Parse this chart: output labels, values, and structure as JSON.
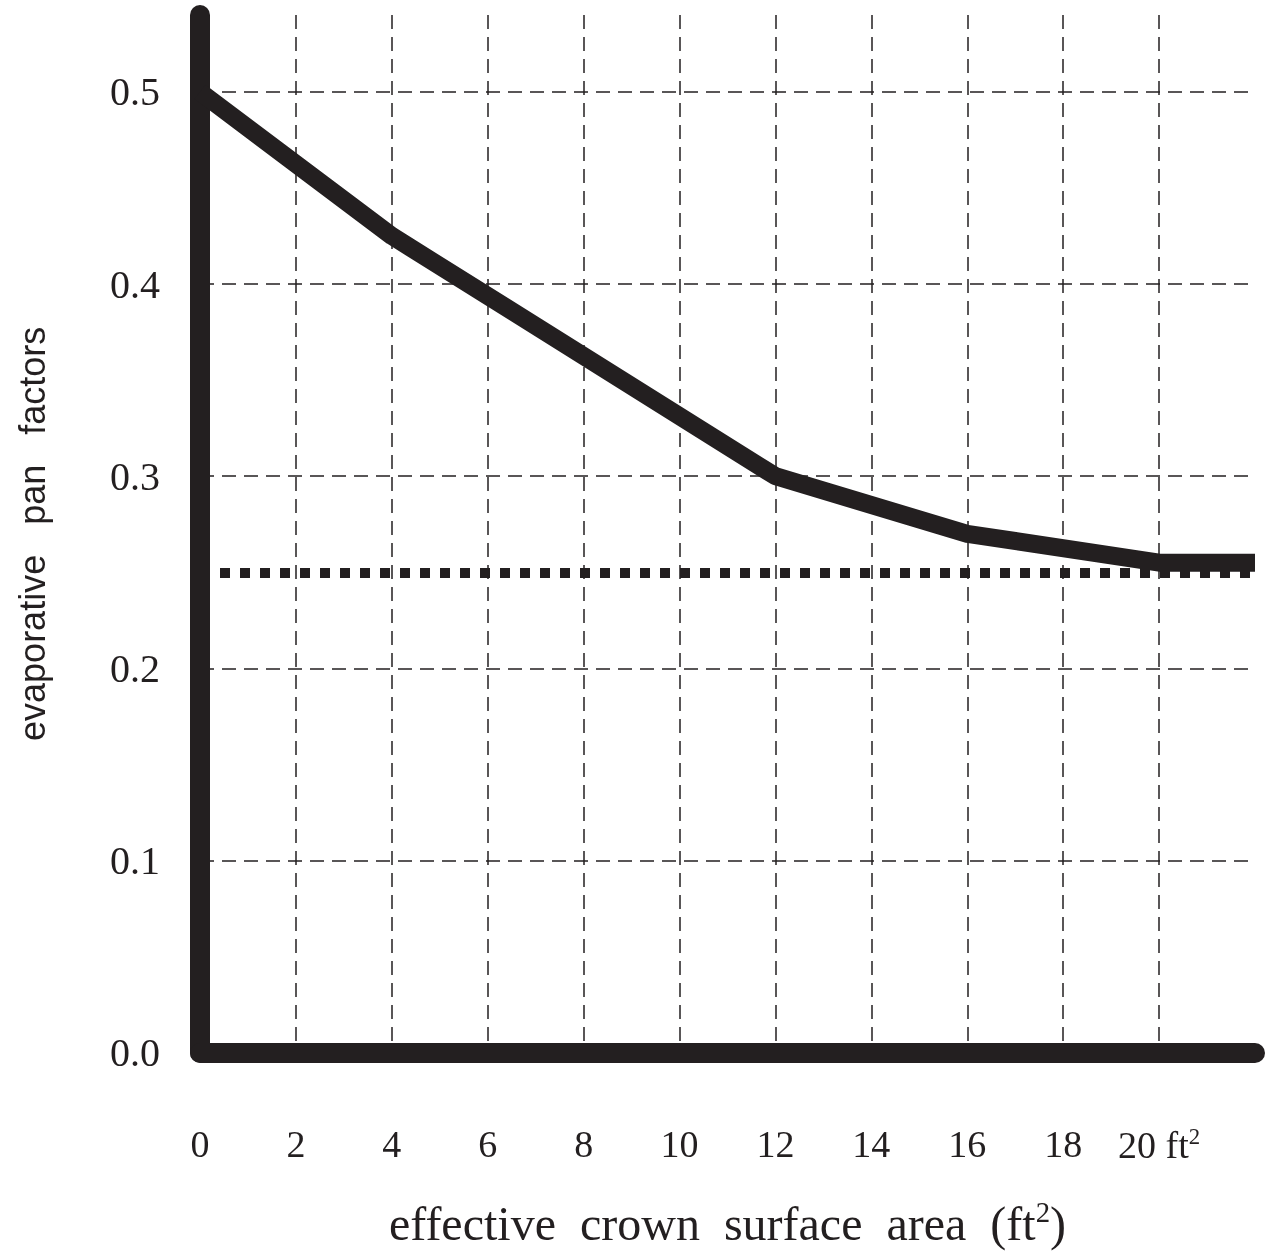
{
  "chart_data": {
    "type": "line",
    "xlabel": "effective  crown  surface  area  (ft$^{2}$)",
    "ylabel": "evaporative   pan   factors",
    "x": [
      0,
      4,
      12,
      16,
      20,
      22
    ],
    "series": [
      {
        "color": "#231f20",
        "values": [
          0.5,
          0.425,
          0.3,
          0.27,
          0.255,
          0.255
        ]
      }
    ],
    "xlim": [
      0,
      22
    ],
    "ylim": [
      0,
      0.54
    ],
    "xticks": [
      0,
      2,
      4,
      6,
      8,
      10,
      12,
      14,
      16,
      18,
      {
        "value": 20,
        "label": "20 ft$^{2}$"
      }
    ],
    "yticks": [
      {
        "value": 0,
        "label": "0.0"
      },
      0.1,
      0.2,
      0.3,
      0.4,
      0.5
    ],
    "grid": true,
    "marker": "none",
    "line_style": "solid",
    "ref_lines": [
      {
        "axis": "y",
        "value": 0.25,
        "label": null,
        "line_style": "dotted",
        "color": "#231f20"
      }
    ]
  }
}
